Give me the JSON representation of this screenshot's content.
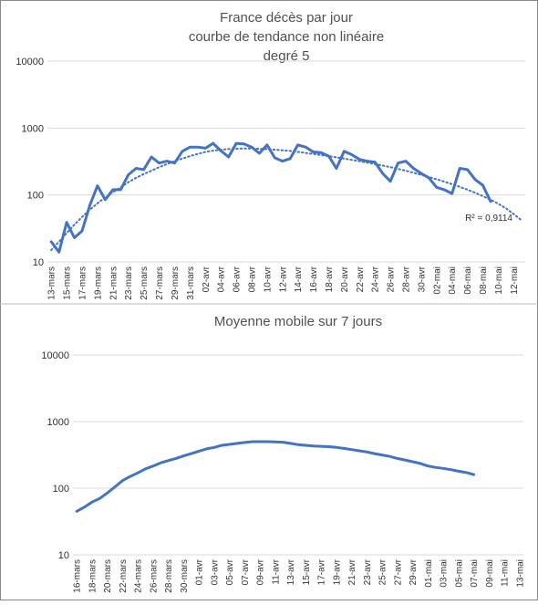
{
  "chart_data": [
    {
      "type": "line",
      "title": [
        "France décès par jour",
        "courbe de tendance non linéaire",
        "degré 5"
      ],
      "categories": [
        "13-mars",
        null,
        "15-mars",
        null,
        "17-mars",
        null,
        "19-mars",
        null,
        "21-mars",
        null,
        "23-mars",
        null,
        "25-mars",
        null,
        "27-mars",
        null,
        "29-mars",
        null,
        "31-mars",
        null,
        "02-avr",
        null,
        "04-avr",
        null,
        "06-avr",
        null,
        "08-avr",
        null,
        "10-avr",
        null,
        "12-avr",
        null,
        "14-avr",
        null,
        "16-avr",
        null,
        "18-avr",
        null,
        "20-avr",
        null,
        "22-avr",
        null,
        "24-avr",
        null,
        "26-avr",
        null,
        "28-avr",
        null,
        "30-avr",
        null,
        "02-mai",
        null,
        "04-mai",
        null,
        "06-mai",
        null,
        "08-mai",
        null,
        "10-mai",
        null,
        "12-mai",
        null
      ],
      "series": [
        {
          "color": "#4472c4",
          "values": [
            20,
            14,
            39,
            23,
            29,
            70,
            137,
            85,
            120,
            120,
            200,
            250,
            240,
            370,
            300,
            320,
            300,
            450,
            520,
            520,
            500,
            590,
            460,
            370,
            590,
            580,
            520,
            420,
            560,
            360,
            320,
            350,
            560,
            520,
            440,
            430,
            380,
            250,
            450,
            400,
            340,
            320,
            310,
            210,
            160,
            300,
            320,
            250,
            210,
            180,
            130,
            120,
            105,
            250,
            240,
            170,
            140,
            80,
            null,
            null,
            null,
            null
          ]
        },
        {
          "color": "#4472c4",
          "dotted": true,
          "values": [
            15,
            20,
            27,
            36,
            47,
            60,
            75,
            92,
            110,
            130,
            155,
            180,
            205,
            230,
            260,
            290,
            320,
            350,
            380,
            410,
            440,
            460,
            475,
            485,
            490,
            495,
            495,
            490,
            485,
            475,
            465,
            455,
            440,
            425,
            410,
            395,
            380,
            365,
            350,
            335,
            320,
            305,
            290,
            275,
            260,
            245,
            230,
            215,
            200,
            185,
            172,
            158,
            145,
            132,
            120,
            108,
            96,
            85,
            74,
            63,
            52,
            42
          ]
        }
      ],
      "annotation": "R² = 0,9114",
      "log": true,
      "ylim": [
        10,
        10000
      ],
      "yticks": [
        10,
        100,
        1000,
        10000
      ],
      "grid": true
    },
    {
      "type": "line",
      "title": [
        "Moyenne mobile sur 7 jours"
      ],
      "categories": [
        "16-mars",
        null,
        "18-mars",
        null,
        "20-mars",
        null,
        "22-mars",
        null,
        "24-mars",
        null,
        "26-mars",
        null,
        "28-mars",
        null,
        "30-mars",
        null,
        "01-avr",
        null,
        "03-avr",
        null,
        "05-avr",
        null,
        "07-avr",
        null,
        "09-avr",
        null,
        "11-avr",
        null,
        "13-avr",
        null,
        "15-avr",
        null,
        "17-avr",
        null,
        "19-avr",
        null,
        "21-avr",
        null,
        "23-avr",
        null,
        "25-avr",
        null,
        "27-avr",
        null,
        "29-avr",
        null,
        "01-mai",
        null,
        "03-mai",
        null,
        "05-mai",
        null,
        "07-mai",
        null,
        "09-mai",
        null,
        "11-mai",
        null,
        "13-mai"
      ],
      "series": [
        {
          "color": "#4472c4",
          "values": [
            45,
            52,
            62,
            70,
            85,
            105,
            130,
            150,
            170,
            195,
            215,
            240,
            260,
            280,
            305,
            330,
            360,
            390,
            410,
            440,
            455,
            470,
            485,
            500,
            500,
            500,
            495,
            490,
            470,
            450,
            440,
            430,
            425,
            420,
            410,
            395,
            380,
            365,
            350,
            330,
            315,
            300,
            280,
            265,
            250,
            235,
            215,
            205,
            198,
            190,
            180,
            172,
            160,
            null,
            null,
            null,
            null,
            null,
            null
          ]
        }
      ],
      "log": true,
      "ylim": [
        10,
        10000
      ],
      "yticks": [
        10,
        100,
        1000,
        10000
      ],
      "grid": true
    }
  ]
}
